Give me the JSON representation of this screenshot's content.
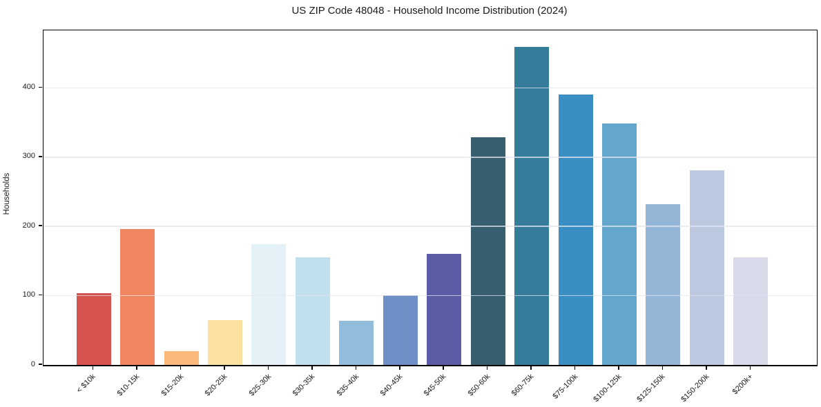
{
  "figure": {
    "background": "#ffffff",
    "text_color": "#1a1a1a"
  },
  "chart_data": {
    "type": "bar",
    "title": "US ZIP Code 48048 - Household Income Distribution (2024)",
    "xlabel": "",
    "ylabel": "Households",
    "categories": [
      "< $10k",
      "$10-15k",
      "$15-20k",
      "$20-25k",
      "$25-30k",
      "$30-35k",
      "$35-40k",
      "$40-45k",
      "$45-50k",
      "$50-60k",
      "$60-75k",
      "$75-100k",
      "$100-125k",
      "$125-150k",
      "$150-200k",
      "$200k+"
    ],
    "values": [
      104,
      196,
      20,
      65,
      174,
      155,
      64,
      101,
      160,
      329,
      459,
      390,
      349,
      232,
      281,
      155
    ],
    "bar_colors": [
      "#d6544e",
      "#f0855f",
      "#fab97a",
      "#fde1a1",
      "#e4f1f6",
      "#bfe0ec",
      "#92bcdb",
      "#6e90c6",
      "#5c5ba6",
      "#385f70",
      "#357c9b",
      "#3a8ec4",
      "#64a7cc",
      "#94b7d8",
      "#bac8e0",
      "#d8dae9"
    ],
    "yticks": [
      0,
      100,
      200,
      300,
      400
    ],
    "ylim": [
      0,
      483
    ],
    "grid": "horizontal",
    "gridline_color": "#eaeaf0",
    "axis_color": "#000000",
    "legend": "none",
    "x_tick_rotation_deg": 45
  }
}
